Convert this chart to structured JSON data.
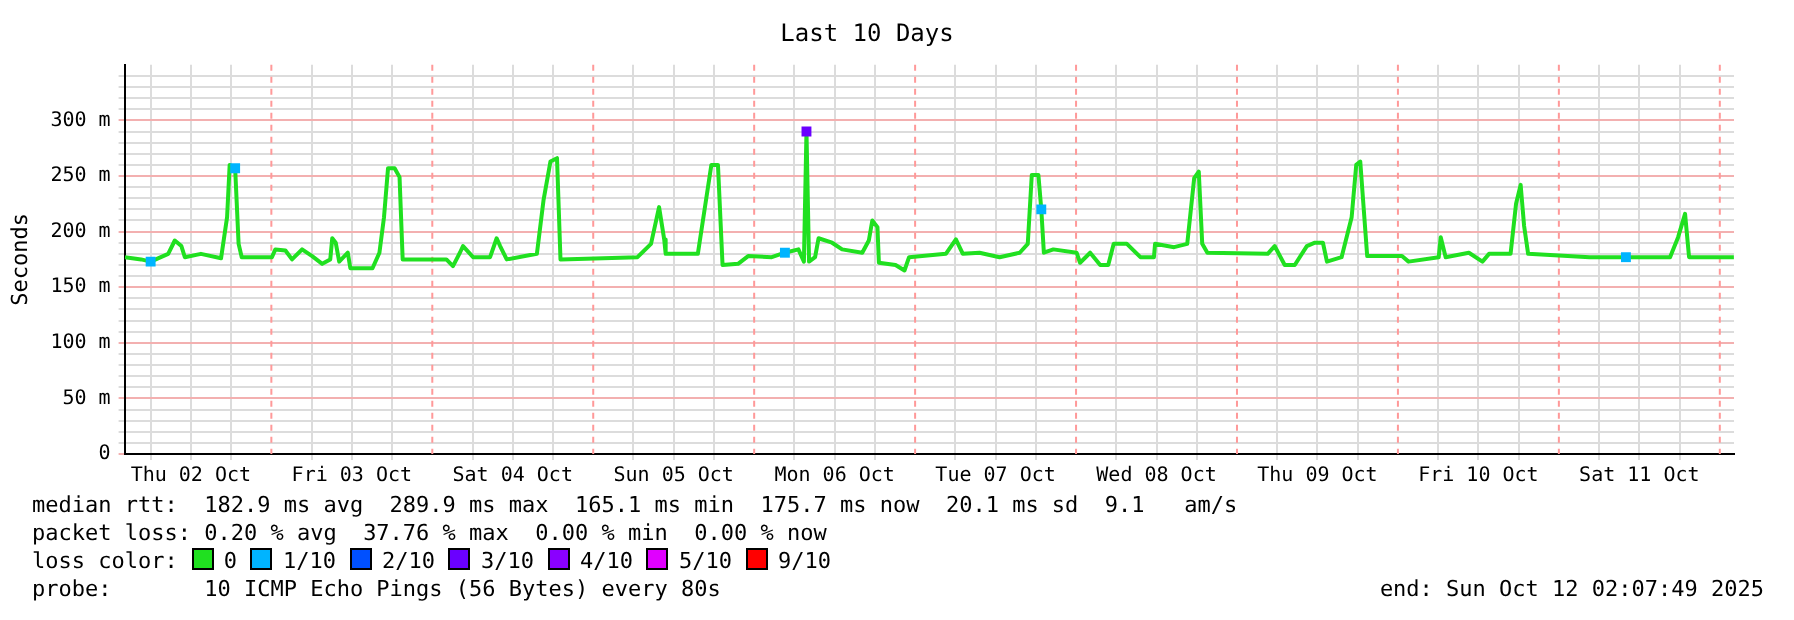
{
  "chart_data": {
    "type": "line",
    "title": "Last 10 Days",
    "ylabel": "Seconds",
    "legend_title": "loss color:",
    "legend": "bottom",
    "grid": true,
    "xlim": [
      "2025-10-02T02:07",
      "2025-10-12T02:07"
    ],
    "ylim": [
      0,
      350
    ],
    "yticks": [
      {
        "value": 0,
        "label": "0"
      },
      {
        "value": 10,
        "label": null
      },
      {
        "value": 20,
        "label": null
      },
      {
        "value": 30,
        "label": null
      },
      {
        "value": 40,
        "label": null
      },
      {
        "value": 50,
        "label": "50 m"
      },
      {
        "value": 60,
        "label": null
      },
      {
        "value": 70,
        "label": null
      },
      {
        "value": 80,
        "label": null
      },
      {
        "value": 90,
        "label": null
      },
      {
        "value": 100,
        "label": "100 m"
      },
      {
        "value": 110,
        "label": null
      },
      {
        "value": 120,
        "label": null
      },
      {
        "value": 130,
        "label": null
      },
      {
        "value": 140,
        "label": null
      },
      {
        "value": 150,
        "label": "150 m"
      },
      {
        "value": 160,
        "label": null
      },
      {
        "value": 170,
        "label": null
      },
      {
        "value": 180,
        "label": null
      },
      {
        "value": 190,
        "label": null
      },
      {
        "value": 200,
        "label": "200 m"
      },
      {
        "value": 210,
        "label": null
      },
      {
        "value": 220,
        "label": null
      },
      {
        "value": 230,
        "label": null
      },
      {
        "value": 240,
        "label": null
      },
      {
        "value": 250,
        "label": "250 m"
      },
      {
        "value": 260,
        "label": null
      },
      {
        "value": 270,
        "label": null
      },
      {
        "value": 280,
        "label": null
      },
      {
        "value": 290,
        "label": null
      },
      {
        "value": 300,
        "label": "300 m"
      },
      {
        "value": 310,
        "label": null
      },
      {
        "value": 320,
        "label": null
      },
      {
        "value": 330,
        "label": null
      },
      {
        "value": 340,
        "label": null
      }
    ],
    "xticks": [
      {
        "value": "2025-10-02T06:00",
        "label": null
      },
      {
        "value": "2025-10-02T12:00",
        "label": "Thu 02 Oct"
      },
      {
        "value": "2025-10-02T18:00",
        "label": null
      },
      {
        "value": "2025-10-03T06:00",
        "label": null
      },
      {
        "value": "2025-10-03T12:00",
        "label": "Fri 03 Oct"
      },
      {
        "value": "2025-10-03T18:00",
        "label": null
      },
      {
        "value": "2025-10-04T06:00",
        "label": null
      },
      {
        "value": "2025-10-04T12:00",
        "label": "Sat 04 Oct"
      },
      {
        "value": "2025-10-04T18:00",
        "label": null
      },
      {
        "value": "2025-10-05T06:00",
        "label": null
      },
      {
        "value": "2025-10-05T12:00",
        "label": "Sun 05 Oct"
      },
      {
        "value": "2025-10-05T18:00",
        "label": null
      },
      {
        "value": "2025-10-06T06:00",
        "label": null
      },
      {
        "value": "2025-10-06T12:00",
        "label": "Mon 06 Oct"
      },
      {
        "value": "2025-10-06T18:00",
        "label": null
      },
      {
        "value": "2025-10-07T06:00",
        "label": null
      },
      {
        "value": "2025-10-07T12:00",
        "label": "Tue 07 Oct"
      },
      {
        "value": "2025-10-07T18:00",
        "label": null
      },
      {
        "value": "2025-10-08T06:00",
        "label": null
      },
      {
        "value": "2025-10-08T12:00",
        "label": "Wed 08 Oct"
      },
      {
        "value": "2025-10-08T18:00",
        "label": null
      },
      {
        "value": "2025-10-09T06:00",
        "label": null
      },
      {
        "value": "2025-10-09T12:00",
        "label": "Thu 09 Oct"
      },
      {
        "value": "2025-10-09T18:00",
        "label": null
      },
      {
        "value": "2025-10-10T06:00",
        "label": null
      },
      {
        "value": "2025-10-10T12:00",
        "label": "Fri 10 Oct"
      },
      {
        "value": "2025-10-10T18:00",
        "label": null
      },
      {
        "value": "2025-10-11T06:00",
        "label": null
      },
      {
        "value": "2025-10-11T12:00",
        "label": "Sat 11 Oct"
      },
      {
        "value": "2025-10-11T18:00",
        "label": null
      }
    ],
    "ref_lines": [
      {
        "axis": "x",
        "value": "2025-10-03T00:00",
        "label": null,
        "color": "#ff9999",
        "line_style": "dashed"
      },
      {
        "axis": "x",
        "value": "2025-10-04T00:00",
        "label": null,
        "color": "#ff9999",
        "line_style": "dashed"
      },
      {
        "axis": "x",
        "value": "2025-10-05T00:00",
        "label": null,
        "color": "#ff9999",
        "line_style": "dashed"
      },
      {
        "axis": "x",
        "value": "2025-10-06T00:00",
        "label": null,
        "color": "#ff9999",
        "line_style": "dashed"
      },
      {
        "axis": "x",
        "value": "2025-10-07T00:00",
        "label": null,
        "color": "#ff9999",
        "line_style": "dashed"
      },
      {
        "axis": "x",
        "value": "2025-10-08T00:00",
        "label": null,
        "color": "#ff9999",
        "line_style": "dashed"
      },
      {
        "axis": "x",
        "value": "2025-10-09T00:00",
        "label": null,
        "color": "#ff9999",
        "line_style": "dashed"
      },
      {
        "axis": "x",
        "value": "2025-10-10T00:00",
        "label": null,
        "color": "#ff9999",
        "line_style": "dashed"
      },
      {
        "axis": "x",
        "value": "2025-10-11T00:00",
        "label": null,
        "color": "#ff9999",
        "line_style": "dashed"
      },
      {
        "axis": "x",
        "value": "2025-10-12T00:00",
        "label": null,
        "color": "#ff9999",
        "line_style": "dashed"
      }
    ],
    "series": [
      {
        "name": "0",
        "color": "#20e020",
        "marker": "none",
        "line_style": "solid",
        "x": [
          "2025-10-02T02:10",
          "2025-10-02T04:35",
          "2025-10-02T06:00",
          "2025-10-02T08:37",
          "2025-10-02T09:36",
          "2025-10-02T10:35",
          "2025-10-02T11:06",
          "2025-10-02T13:30",
          "2025-10-02T16:30",
          "2025-10-02T17:24",
          "2025-10-02T17:47",
          "2025-10-02T18:36",
          "2025-10-02T19:07",
          "2025-10-02T19:35",
          "2025-10-03T00:05",
          "2025-10-03T00:36",
          "2025-10-03T02:06",
          "2025-10-03T03:05",
          "2025-10-03T04:35",
          "2025-10-03T06:05",
          "2025-10-03T07:35",
          "2025-10-03T08:47",
          "2025-10-03T09:05",
          "2025-10-03T09:36",
          "2025-10-03T10:07",
          "2025-10-03T11:24",
          "2025-10-03T11:47",
          "2025-10-03T15:05",
          "2025-10-03T16:07",
          "2025-10-03T16:48",
          "2025-10-03T17:24",
          "2025-10-03T18:23",
          "2025-10-03T19:07",
          "2025-10-03T19:35",
          "2025-10-04T02:06",
          "2025-10-04T03:05",
          "2025-10-04T04:07",
          "2025-10-04T04:35",
          "2025-10-04T06:05",
          "2025-10-04T08:37",
          "2025-10-04T09:36",
          "2025-10-04T10:07",
          "2025-10-04T11:06",
          "2025-10-04T15:36",
          "2025-10-04T16:35",
          "2025-10-04T17:37",
          "2025-10-04T18:36",
          "2025-10-04T19:07",
          "2025-10-05T06:36",
          "2025-10-05T08:37",
          "2025-10-05T09:49",
          "2025-10-05T10:35",
          "2025-10-05T10:48",
          "2025-10-05T15:36",
          "2025-10-05T16:35",
          "2025-10-05T17:37",
          "2025-10-05T18:36",
          "2025-10-05T19:17",
          "2025-10-05T21:36",
          "2025-10-05T23:06",
          "2025-10-06T02:37",
          "2025-10-06T04:35",
          "2025-10-06T06:36",
          "2025-10-06T07:25",
          "2025-10-06T07:48",
          "2025-10-06T08:11",
          "2025-10-06T09:05",
          "2025-10-06T09:36",
          "2025-10-06T11:37",
          "2025-10-06T13:07",
          "2025-10-06T16:07",
          "2025-10-06T17:06",
          "2025-10-06T17:37",
          "2025-10-06T18:23",
          "2025-10-06T18:36",
          "2025-10-06T21:05",
          "2025-10-06T22:25",
          "2025-10-06T23:06",
          "2025-10-07T04:35",
          "2025-10-07T06:05",
          "2025-10-07T07:07",
          "2025-10-07T09:36",
          "2025-10-07T12:36",
          "2025-10-07T15:36",
          "2025-10-07T16:48",
          "2025-10-07T17:24",
          "2025-10-07T18:23",
          "2025-10-07T18:49",
          "2025-10-07T19:12",
          "2025-10-07T20:37",
          "2025-10-08T00:05",
          "2025-10-08T00:36",
          "2025-10-08T02:06",
          "2025-10-08T03:36",
          "2025-10-08T04:48",
          "2025-10-08T05:37",
          "2025-10-08T07:35",
          "2025-10-08T09:36",
          "2025-10-08T11:37",
          "2025-10-08T11:47",
          "2025-10-08T14:37",
          "2025-10-08T16:35",
          "2025-10-08T17:37",
          "2025-10-08T18:18",
          "2025-10-08T18:49",
          "2025-10-08T19:35",
          "2025-10-09T04:35",
          "2025-10-09T05:37",
          "2025-10-09T07:07",
          "2025-10-09T08:37",
          "2025-10-09T10:25",
          "2025-10-09T11:37",
          "2025-10-09T12:49",
          "2025-10-09T13:25",
          "2025-10-09T15:36",
          "2025-10-09T17:06",
          "2025-10-09T17:47",
          "2025-10-09T18:23",
          "2025-10-09T19:25",
          "2025-10-10T00:36",
          "2025-10-10T01:35",
          "2025-10-10T06:05",
          "2025-10-10T06:23",
          "2025-10-10T07:07",
          "2025-10-10T10:35",
          "2025-10-10T12:36",
          "2025-10-10T13:35",
          "2025-10-10T16:48",
          "2025-10-10T17:37",
          "2025-10-10T18:18",
          "2025-10-10T18:49",
          "2025-10-10T19:25",
          "2025-10-11T04:35",
          "2025-10-11T12:36",
          "2025-10-11T16:35",
          "2025-10-11T17:47",
          "2025-10-11T18:49",
          "2025-10-11T19:25",
          "2025-10-12T02:06"
        ],
        "values": [
          177,
          175,
          173,
          180,
          192,
          187,
          177,
          180,
          176,
          213,
          260,
          257,
          189,
          177,
          177,
          184,
          183,
          175,
          184,
          178,
          171,
          175,
          194,
          190,
          173,
          181,
          167,
          167,
          181,
          213,
          257,
          257,
          249,
          175,
          175,
          169,
          181,
          187,
          177,
          177,
          194,
          187,
          175,
          180,
          228,
          263,
          266,
          175,
          177,
          189,
          222,
          193,
          180,
          180,
          219,
          260,
          260,
          170,
          171,
          178,
          177,
          181,
          184,
          173,
          290,
          173,
          177,
          194,
          190,
          184,
          181,
          192,
          210,
          204,
          172,
          170,
          165,
          177,
          180,
          193,
          180,
          181,
          177,
          181,
          189,
          251,
          251,
          220,
          181,
          184,
          181,
          172,
          181,
          170,
          170,
          189,
          189,
          177,
          177,
          189,
          186,
          189,
          248,
          254,
          189,
          181,
          180,
          187,
          170,
          170,
          187,
          190,
          190,
          173,
          177,
          213,
          260,
          263,
          178,
          178,
          173,
          177,
          195,
          177,
          181,
          173,
          180,
          180,
          225,
          242,
          205,
          180,
          177,
          177,
          177,
          195,
          216,
          177,
          177
        ]
      },
      {
        "name": "1/10",
        "color": "#00b4ff",
        "type": "scatter",
        "marker": "square",
        "x": [
          "2025-10-02T06:00",
          "2025-10-02T18:36",
          "2025-10-06T04:35",
          "2025-10-07T18:49",
          "2025-10-11T10:00"
        ],
        "values": [
          173,
          257,
          181,
          220,
          177
        ]
      },
      {
        "name": "2/10",
        "color": "#0050ff",
        "type": "scatter",
        "marker": "square"
      },
      {
        "name": "3/10",
        "color": "#6a00ff",
        "type": "scatter",
        "marker": "square",
        "x": [
          "2025-10-06T07:48"
        ],
        "values": [
          290
        ]
      },
      {
        "name": "4/10",
        "color": "#8a00ff",
        "type": "scatter",
        "marker": "square"
      },
      {
        "name": "5/10",
        "color": "#e000ff",
        "type": "scatter",
        "marker": "square"
      },
      {
        "name": "9/10",
        "color": "#ff0000",
        "type": "scatter",
        "marker": "square"
      }
    ],
    "annotations": [
      "median rtt:  182.9 ms avg  289.9 ms max  165.1 ms min  175.7 ms now  20.1 ms sd  9.1   am/s",
      "packet loss: 0.20 % avg  37.76 % max  0.00 % min  0.00 % now",
      "probe:       10 ICMP Echo Pings (56 Bytes) every 80s",
      "end: Sun Oct 12 02:07:49 2025"
    ]
  }
}
